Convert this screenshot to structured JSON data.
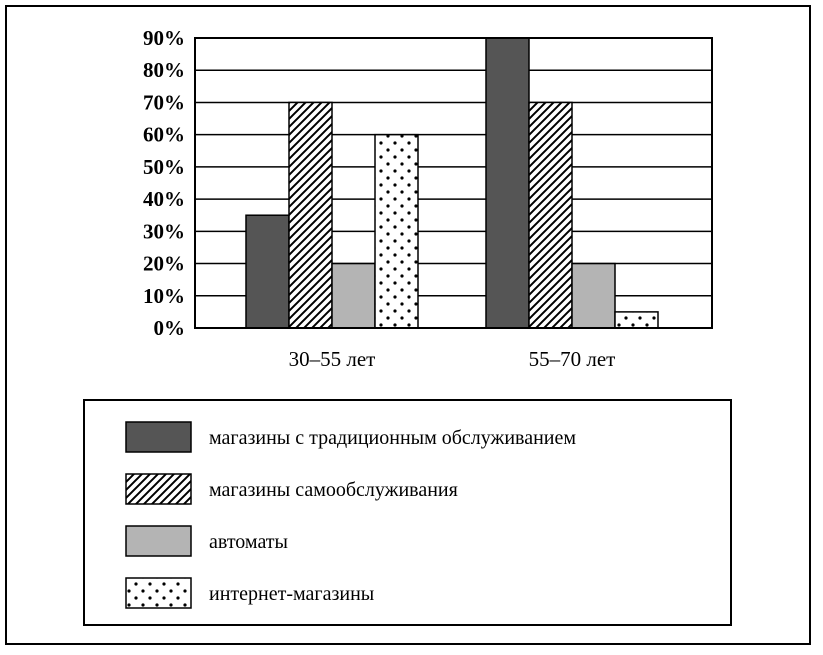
{
  "chart_data": {
    "type": "bar",
    "categories": [
      "30–55 лет",
      "55–70 лет"
    ],
    "series": [
      {
        "name": "магазины с традиционным обслуживанием",
        "values": [
          35,
          90
        ],
        "pattern": "solid-dark",
        "color": "#555555"
      },
      {
        "name": "магазины самообслуживания",
        "values": [
          70,
          70
        ],
        "pattern": "diagonal-hatch",
        "color": "#000000"
      },
      {
        "name": "автоматы",
        "values": [
          20,
          20
        ],
        "pattern": "solid-light",
        "color": "#b4b4b4"
      },
      {
        "name": "интернет-магазины",
        "values": [
          60,
          5
        ],
        "pattern": "dots",
        "color": "#000000"
      }
    ],
    "ylim": [
      0,
      90
    ],
    "yticks": [
      "0%",
      "10%",
      "20%",
      "30%",
      "40%",
      "50%",
      "60%",
      "70%",
      "80%",
      "90%"
    ],
    "grid": true,
    "legend_position": "bottom",
    "title": "",
    "xlabel": "",
    "ylabel": ""
  }
}
